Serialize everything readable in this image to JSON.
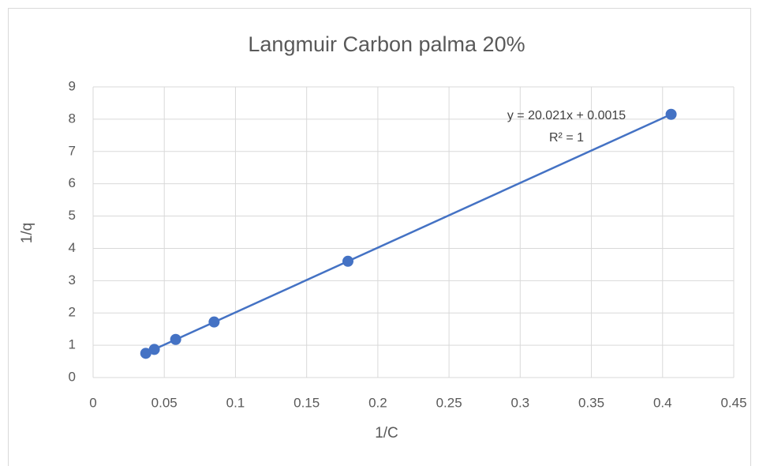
{
  "chart_data": {
    "type": "scatter",
    "title": "Langmuir Carbon palma 20%",
    "xlabel": "1/C",
    "ylabel": "1/q",
    "annotations": [
      "y = 20.021x + 0.0015",
      "R² = 1"
    ],
    "series": [
      {
        "name": "1/q",
        "color": "#4472c4",
        "x": [
          0.037,
          0.043,
          0.058,
          0.085,
          0.179,
          0.406
        ],
        "values": [
          0.75,
          0.87,
          1.18,
          1.72,
          3.6,
          8.15
        ]
      }
    ],
    "trendline": true,
    "xlim": [
      0,
      0.45
    ],
    "xticks": [
      0,
      0.05,
      0.1,
      0.15,
      0.2,
      0.25,
      0.3,
      0.35,
      0.4,
      0.45
    ],
    "ylim": [
      0,
      9
    ],
    "yticks": [
      0,
      1,
      2,
      3,
      4,
      5,
      6,
      7,
      8,
      9
    ],
    "grid": true
  }
}
